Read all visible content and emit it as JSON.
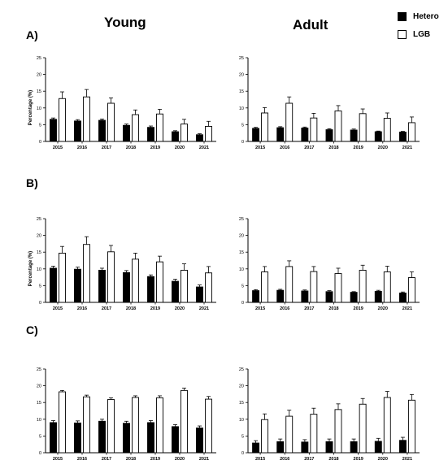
{
  "column_titles": [
    "Young",
    "Adult"
  ],
  "row_labels": [
    "A)",
    "B)",
    "C)"
  ],
  "legend": [
    {
      "name": "Hetero",
      "fill": "#000000"
    },
    {
      "name": "LGB",
      "fill": "#ffffff"
    }
  ],
  "chart_data": [
    {
      "type": "bar",
      "panel": "A-Young",
      "ylabel": "Percentage (%)",
      "ylim": [
        0,
        25
      ],
      "yticks": [
        0,
        5,
        10,
        15,
        20,
        25
      ],
      "categories": [
        "2015",
        "2016",
        "2017",
        "2018",
        "2019",
        "2020",
        "2021"
      ],
      "series": [
        {
          "name": "Hetero",
          "values": [
            6.6,
            6.1,
            6.3,
            4.8,
            4.2,
            2.9,
            2.0
          ],
          "errors": [
            0.4,
            0.4,
            0.4,
            0.4,
            0.4,
            0.3,
            0.3
          ]
        },
        {
          "name": "LGB",
          "values": [
            12.8,
            13.3,
            11.4,
            8.0,
            8.2,
            5.2,
            4.5
          ],
          "errors": [
            2.0,
            2.2,
            1.6,
            1.4,
            1.4,
            1.4,
            1.5
          ]
        }
      ]
    },
    {
      "type": "bar",
      "panel": "A-Adult",
      "ylabel": "",
      "ylim": [
        0,
        25
      ],
      "yticks": [
        0,
        5,
        10,
        15,
        20,
        25
      ],
      "categories": [
        "2015",
        "2016",
        "2017",
        "2018",
        "2019",
        "2020",
        "2021"
      ],
      "series": [
        {
          "name": "Hetero",
          "values": [
            3.9,
            4.1,
            4.0,
            3.5,
            3.4,
            2.9,
            2.8
          ],
          "errors": [
            0.3,
            0.3,
            0.3,
            0.3,
            0.3,
            0.2,
            0.2
          ]
        },
        {
          "name": "LGB",
          "values": [
            8.5,
            11.4,
            7.0,
            9.1,
            8.3,
            6.9,
            5.6
          ],
          "errors": [
            1.6,
            1.9,
            1.4,
            1.6,
            1.4,
            1.6,
            1.7
          ]
        }
      ]
    },
    {
      "type": "bar",
      "panel": "B-Young",
      "ylabel": "Percentage (%)",
      "ylim": [
        0,
        25
      ],
      "yticks": [
        0,
        5,
        10,
        15,
        20,
        25
      ],
      "categories": [
        "2015",
        "2016",
        "2017",
        "2018",
        "2019",
        "2020",
        "2021"
      ],
      "series": [
        {
          "name": "Hetero",
          "values": [
            10.2,
            9.9,
            9.6,
            8.9,
            7.7,
            6.3,
            4.6
          ],
          "errors": [
            0.6,
            0.6,
            0.6,
            0.6,
            0.5,
            0.6,
            0.6
          ]
        },
        {
          "name": "LGB",
          "values": [
            14.7,
            17.3,
            15.1,
            12.9,
            12.1,
            9.6,
            8.8
          ],
          "errors": [
            2.0,
            2.3,
            1.9,
            1.8,
            1.7,
            1.9,
            1.9
          ]
        }
      ]
    },
    {
      "type": "bar",
      "panel": "B-Adult",
      "ylabel": "",
      "ylim": [
        0,
        25
      ],
      "yticks": [
        0,
        5,
        10,
        15,
        20,
        25
      ],
      "categories": [
        "2015",
        "2016",
        "2017",
        "2018",
        "2019",
        "2020",
        "2021"
      ],
      "series": [
        {
          "name": "Hetero",
          "values": [
            3.5,
            3.6,
            3.4,
            3.2,
            3.0,
            3.3,
            2.8
          ],
          "errors": [
            0.3,
            0.3,
            0.3,
            0.3,
            0.2,
            0.3,
            0.3
          ]
        },
        {
          "name": "LGB",
          "values": [
            9.1,
            10.7,
            9.2,
            8.6,
            9.6,
            9.1,
            7.4
          ],
          "errors": [
            1.6,
            1.7,
            1.5,
            1.6,
            1.5,
            1.7,
            1.7
          ]
        }
      ]
    },
    {
      "type": "bar",
      "panel": "C-Young",
      "ylabel": "",
      "ylim": [
        0,
        25
      ],
      "yticks": [
        0,
        5,
        10,
        15,
        20,
        25
      ],
      "categories": [
        "2015",
        "2016",
        "2017",
        "2018",
        "2019",
        "2020",
        "2021"
      ],
      "series": [
        {
          "name": "Hetero",
          "values": [
            9.0,
            8.9,
            9.4,
            8.8,
            9.0,
            7.8,
            7.4
          ],
          "errors": [
            0.6,
            0.6,
            0.6,
            0.6,
            0.6,
            0.6,
            0.6
          ]
        },
        {
          "name": "LGB",
          "values": [
            18.2,
            16.7,
            15.9,
            16.5,
            16.4,
            18.6,
            16.0
          ],
          "errors": [
            0.4,
            0.5,
            0.5,
            0.5,
            0.6,
            0.7,
            0.8
          ]
        }
      ]
    },
    {
      "type": "bar",
      "panel": "C-Adult",
      "ylabel": "",
      "ylim": [
        0,
        25
      ],
      "yticks": [
        0,
        5,
        10,
        15,
        20,
        25
      ],
      "categories": [
        "2015",
        "2016",
        "2017",
        "2018",
        "2019",
        "2020",
        "2021"
      ],
      "series": [
        {
          "name": "Hetero",
          "values": [
            2.9,
            3.3,
            3.2,
            3.3,
            3.3,
            3.4,
            3.7
          ],
          "errors": [
            0.7,
            0.8,
            0.7,
            0.8,
            0.8,
            0.9,
            0.9
          ]
        },
        {
          "name": "LGB",
          "values": [
            9.9,
            10.9,
            11.5,
            12.9,
            14.5,
            16.5,
            15.7
          ],
          "errors": [
            1.7,
            1.8,
            1.8,
            1.7,
            1.7,
            1.8,
            1.7
          ]
        }
      ]
    }
  ]
}
